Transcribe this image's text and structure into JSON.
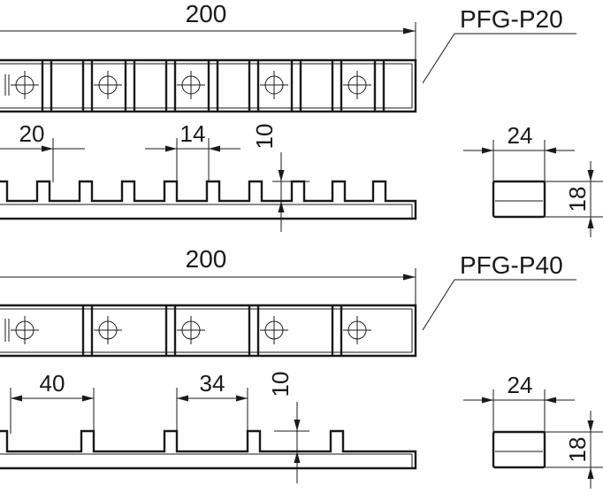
{
  "parts": [
    {
      "model_label": "PFG-P20",
      "length_dim": "200",
      "pitch_dim": "20",
      "slot_dim": "14",
      "tooth_height_dim": "10",
      "end_width_dim": "24",
      "end_height_dim": "18"
    },
    {
      "model_label": "PFG-P40",
      "length_dim": "200",
      "pitch_dim": "40",
      "slot_dim": "34",
      "tooth_height_dim": "10",
      "end_width_dim": "24",
      "end_height_dim": "18"
    }
  ]
}
